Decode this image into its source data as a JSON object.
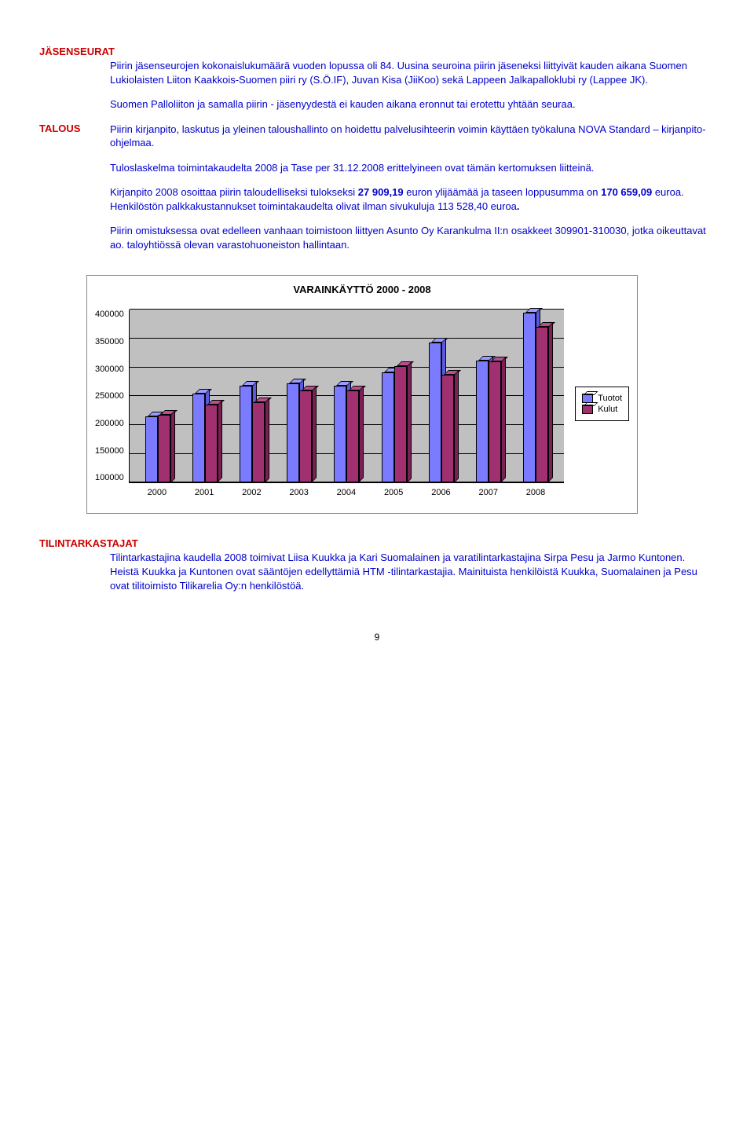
{
  "sections": {
    "jasenseurat": {
      "heading": "JÄSENSEURAT",
      "p1": "Piirin jäsenseurojen kokonaislukumäärä vuoden lopussa oli 84. Uusina seuroina piirin jäseneksi liittyivät kauden aikana Suomen Lukiolaisten Liiton Kaakkois-Suomen piiri ry (S.Ö.IF), Juvan Kisa (JiiKoo) sekä Lappeen Jalkapalloklubi ry (Lappee JK).",
      "p2": "Suomen Palloliiton ja samalla piirin - jäsenyydestä ei kauden aikana eronnut tai erotettu yhtään seuraa."
    },
    "talous": {
      "heading": "TALOUS",
      "p1": "Piirin kirjanpito, laskutus ja yleinen taloushallinto on hoidettu palvelusiht­eerin voimin käyttäen työkaluna NOVA Standard – kirjanpito-ohjelmaa.",
      "p2": "Tuloslaskelma toimintakaudelta 2008 ja Tase per 31.12.2008 erittelyineen ovat tämän kertomuksen liitteinä.",
      "p3a": "Kirjanpito 2008 osoittaa piirin taloudelliseksi tulokseksi ",
      "p3b": "27 909,19",
      "p3c": " euron ylijäämää ja taseen loppusumma on ",
      "p3d": "170 659,09",
      "p3e": " euroa.  Henkilöstön palkkakustannukset toimintakaudelta olivat ilman sivukuluja 113 528,40 euroa",
      "p3dot": ".",
      "p4": "Piirin omistuksessa ovat edelleen vanhaan toimistoon liittyen Asunto Oy Karankulma II:n osakkeet 309901-310030, jotka oikeuttavat ao. taloyhtiössä olevan varastohuoneiston hallintaan."
    },
    "tilintarkastajat": {
      "heading": "TILINTARKASTAJAT",
      "p1": "Tilintarkastajina kaudella 2008 toimivat Liisa Kuukka ja Kari Suomalainen ja varatilintarkastajina Sirpa Pesu ja Jarmo Kuntonen.  Heistä Kuukka ja Kuntonen ovat sääntöjen edellyttämiä HTM -tilintarkastajia. Mainituista henkilöistä Kuukka, Suomalainen ja Pesu ovat tilitoimisto Tilikarelia Oy:n henkilöstöä."
    }
  },
  "chart": {
    "title": "VARAINKÄYTTÖ 2000 - 2008",
    "type": "bar",
    "y_min": 100000,
    "y_max": 400000,
    "y_ticks": [
      "400000",
      "350000",
      "300000",
      "250000",
      "200000",
      "150000",
      "100000"
    ],
    "categories": [
      "2000",
      "2001",
      "2002",
      "2003",
      "2004",
      "2005",
      "2006",
      "2007",
      "2008"
    ],
    "series": [
      {
        "name": "Tuotot",
        "color_front": "#7b7bff",
        "color_top": "#9a9aff",
        "color_side": "#5a5ae0",
        "values": [
          215000,
          255000,
          268000,
          272000,
          268000,
          292000,
          343000,
          312000,
          395000
        ]
      },
      {
        "name": "Kulut",
        "color_front": "#a03070",
        "color_top": "#b85090",
        "color_side": "#7a2055",
        "values": [
          218000,
          235000,
          240000,
          260000,
          260000,
          303000,
          288000,
          310000,
          370000
        ]
      }
    ],
    "background": "#c0c0c0",
    "grid_color": "#000000",
    "label_fontsize": 11,
    "title_fontsize": 13,
    "legend_labels": [
      "Tuotot",
      "Kulut"
    ]
  },
  "page_number": "9"
}
